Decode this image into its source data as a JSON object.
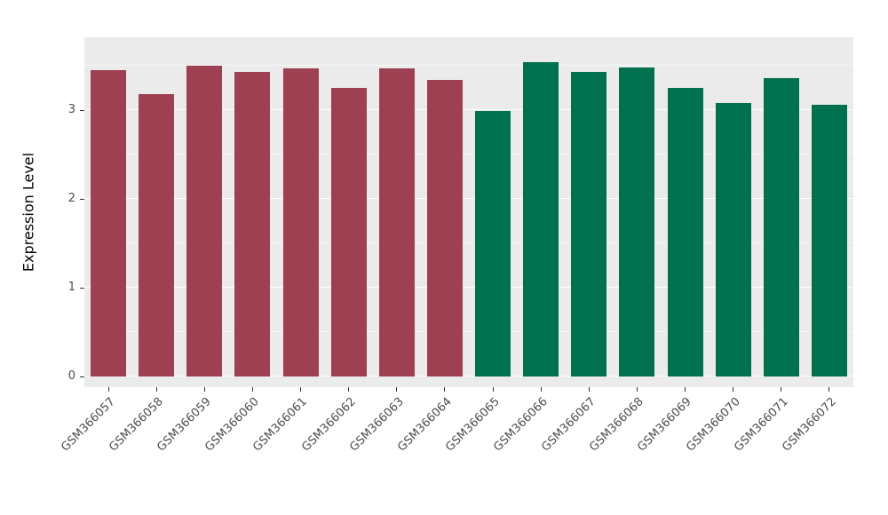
{
  "chart": {
    "background": "#FFFFFF",
    "panel_background": "#EBEBEB",
    "grid_major_color": "#FFFFFF",
    "grid_minor_color": "#F7F7F7",
    "tick_color": "#333333",
    "axis_text_color": "#4D4D4D",
    "axis_title_color": "#000000"
  },
  "chart_data": {
    "type": "bar",
    "title": "",
    "xlabel": "",
    "ylabel": "Expression Level",
    "categories": [
      "GSM366057",
      "GSM366058",
      "GSM366059",
      "GSM366060",
      "GSM366061",
      "GSM366062",
      "GSM366063",
      "GSM366064",
      "GSM366065",
      "GSM366066",
      "GSM366067",
      "GSM366068",
      "GSM366069",
      "GSM366070",
      "GSM366071",
      "GSM366072"
    ],
    "values": [
      3.45,
      3.18,
      3.5,
      3.43,
      3.47,
      3.25,
      3.47,
      3.34,
      2.99,
      3.54,
      3.43,
      3.48,
      3.25,
      3.08,
      3.36,
      3.06
    ],
    "bar_colors": [
      "#9D4152",
      "#9D4152",
      "#9D4152",
      "#9D4152",
      "#9D4152",
      "#9D4152",
      "#9D4152",
      "#9D4152",
      "#00714E",
      "#00714E",
      "#00714E",
      "#00714E",
      "#00714E",
      "#00714E",
      "#00714E",
      "#00714E"
    ],
    "group_colors": {
      "left_group": "#9D4152",
      "right_group": "#00714E"
    },
    "yticks": [
      0,
      1,
      2,
      3
    ],
    "minor_ticks": [
      0.5,
      1.5,
      2.5,
      3.5
    ],
    "ylim": [
      0,
      3.73
    ],
    "grid": true,
    "legend": "none",
    "x_tick_angle": 45,
    "bar_width_fraction": 0.74
  }
}
